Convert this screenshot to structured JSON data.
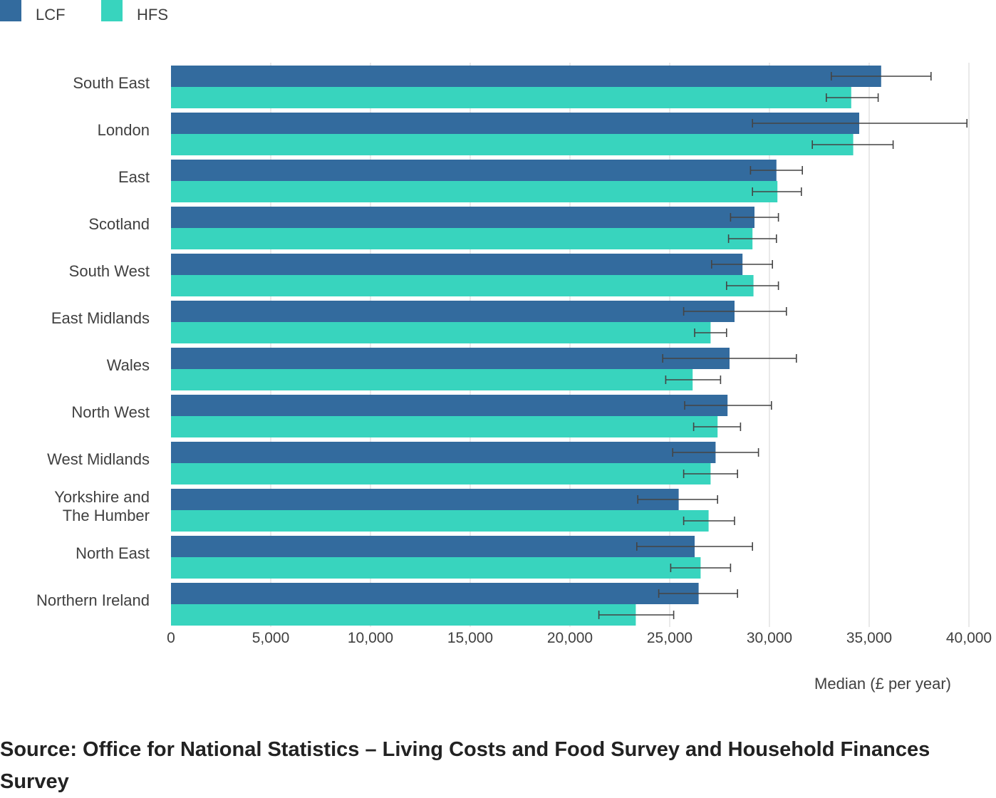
{
  "legend": [
    {
      "name": "LCF",
      "color": "#336b9e"
    },
    {
      "name": "HFS",
      "color": "#38d4be"
    }
  ],
  "source": "Source: Office for National Statistics – Living Costs and Food Survey and Household Finances Survey",
  "chart_data": {
    "type": "bar",
    "orientation": "horizontal",
    "xlabel": "Median (£ per year)",
    "ylabel": "",
    "xlim": [
      0,
      40000
    ],
    "xticks": [
      0,
      5000,
      10000,
      15000,
      20000,
      25000,
      30000,
      35000,
      40000
    ],
    "xtick_labels": [
      "0",
      "5,000",
      "10,000",
      "15,000",
      "20,000",
      "25,000",
      "30,000",
      "35,000",
      "40,000"
    ],
    "grid": "vertical",
    "legend_position": "top-left",
    "categories": [
      [
        "South East"
      ],
      [
        "London"
      ],
      [
        "East"
      ],
      [
        "Scotland"
      ],
      [
        "South West"
      ],
      [
        "East Midlands"
      ],
      [
        "Wales"
      ],
      [
        "North West"
      ],
      [
        "West Midlands"
      ],
      [
        "Yorkshire and",
        "The Humber"
      ],
      [
        "North East"
      ],
      [
        "Northern Ireland"
      ]
    ],
    "series": [
      {
        "name": "LCF",
        "color": "#336b9e",
        "values": [
          35600,
          34500,
          30350,
          29250,
          28650,
          28250,
          28000,
          27900,
          27300,
          25450,
          26250,
          26450
        ],
        "ci_low": [
          33100,
          29150,
          29050,
          28050,
          27100,
          25700,
          24650,
          25750,
          25150,
          23400,
          23350,
          24450
        ],
        "ci_high": [
          38100,
          39900,
          31650,
          30450,
          30150,
          30850,
          31350,
          30100,
          29450,
          27400,
          29150,
          28400
        ]
      },
      {
        "name": "HFS",
        "color": "#38d4be",
        "values": [
          34100,
          34200,
          30400,
          29150,
          29200,
          27050,
          26150,
          27400,
          27050,
          26950,
          26550,
          23300
        ],
        "ci_low": [
          32850,
          32150,
          29150,
          27950,
          27850,
          26250,
          24800,
          26200,
          25700,
          25700,
          25050,
          21450
        ],
        "ci_high": [
          35450,
          36200,
          31600,
          30350,
          30450,
          27850,
          27550,
          28550,
          28400,
          28250,
          28050,
          25200
        ]
      }
    ]
  }
}
